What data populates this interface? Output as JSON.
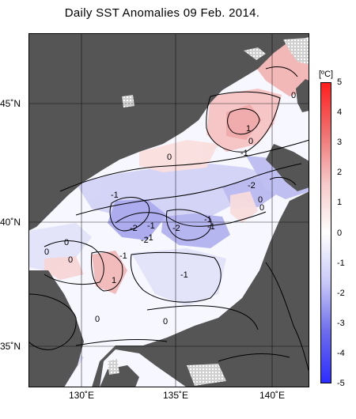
{
  "title": "Daily SST Anomalies 09 Feb. 2014.",
  "colorbar": {
    "unit": "[ºC]",
    "ticks": [
      "5",
      "4",
      "3",
      "2",
      "1",
      "0",
      "-1",
      "-2",
      "-3",
      "-4",
      "-5"
    ],
    "min": -5,
    "max": 5,
    "colors": {
      "neg5": "#2d2dff",
      "neg3": "#6b6bec",
      "neg1": "#c8c8f8",
      "zero": "#ffffff",
      "pos1": "#f6c8c8",
      "pos3": "#f07070",
      "pos5": "#ff1e1e"
    }
  },
  "axes": {
    "lon_labels": [
      "130˚E",
      "135˚E",
      "140˚E"
    ],
    "lat_labels": [
      "45˚N",
      "40˚N",
      "35˚N"
    ]
  },
  "map": {
    "land_color": "#555555",
    "missing_color": "#d8d8d8",
    "contour_labels": [
      "0",
      "1",
      "-1",
      "0",
      "0",
      "-1",
      "-2",
      "0",
      "-1",
      "-1",
      "-2",
      "-1",
      "-2",
      "-2",
      "0",
      "0",
      "-1",
      "-1",
      "-1",
      "1",
      "0",
      "0",
      "0",
      "-1",
      "0",
      "-1"
    ]
  }
}
